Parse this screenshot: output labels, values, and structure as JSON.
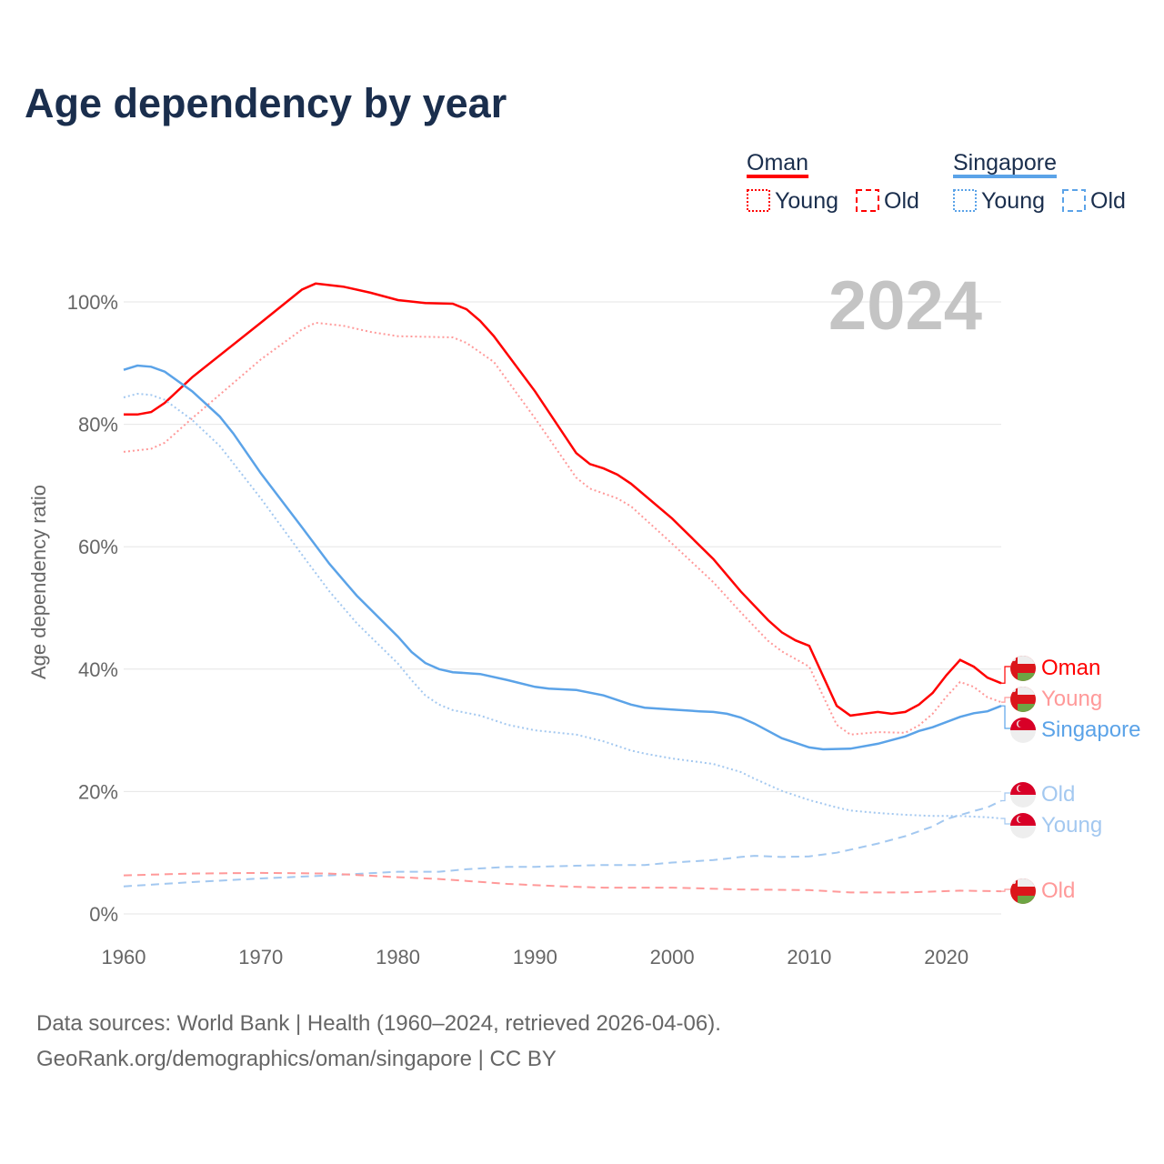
{
  "chart_data": {
    "type": "line",
    "title": "Age dependency by year",
    "xlabel": "",
    "ylabel": "Age dependency ratio",
    "xlim": [
      1960,
      2024
    ],
    "ylim": [
      0,
      100
    ],
    "x_ticks": [
      "1960",
      "1970",
      "1980",
      "1990",
      "2000",
      "2010",
      "2020"
    ],
    "y_ticks": [
      "0%",
      "20%",
      "40%",
      "60%",
      "80%",
      "100%"
    ],
    "grid": true,
    "year_watermark": "2024",
    "legend": {
      "placement": "top-right",
      "groups": [
        {
          "country": "Oman",
          "color": "#ff0000",
          "items": [
            "Young",
            "Old"
          ]
        },
        {
          "country": "Singapore",
          "color": "#5ba3e8",
          "items": [
            "Young",
            "Old"
          ]
        }
      ]
    },
    "series": [
      {
        "name": "Oman",
        "label": "Oman",
        "country": "Oman",
        "style": "solid",
        "color": "#ff0000",
        "points": [
          [
            1960,
            81.6
          ],
          [
            1961,
            81.6
          ],
          [
            1962,
            82
          ],
          [
            1963,
            83.5
          ],
          [
            1965,
            87.7
          ],
          [
            1970,
            96.6
          ],
          [
            1973,
            102
          ],
          [
            1974,
            103
          ],
          [
            1976,
            102.5
          ],
          [
            1978,
            101.5
          ],
          [
            1980,
            100.3
          ],
          [
            1982,
            99.8
          ],
          [
            1984,
            99.7
          ],
          [
            1985,
            98.8
          ],
          [
            1986,
            96.9
          ],
          [
            1987,
            94.4
          ],
          [
            1990,
            85.4
          ],
          [
            1993,
            75.3
          ],
          [
            1994,
            73.5
          ],
          [
            1995,
            72.8
          ],
          [
            1996,
            71.8
          ],
          [
            1997,
            70.3
          ],
          [
            2000,
            64.6
          ],
          [
            2003,
            58
          ],
          [
            2005,
            52.7
          ],
          [
            2007,
            48
          ],
          [
            2008,
            46
          ],
          [
            2009,
            44.7
          ],
          [
            2010,
            43.8
          ],
          [
            2012,
            34
          ],
          [
            2013,
            32.4
          ],
          [
            2015,
            33
          ],
          [
            2016,
            32.7
          ],
          [
            2017,
            33
          ],
          [
            2018,
            34.2
          ],
          [
            2019,
            36.1
          ],
          [
            2020,
            39
          ],
          [
            2021,
            41.5
          ],
          [
            2022,
            40.4
          ],
          [
            2023,
            38.6
          ],
          [
            2024,
            37.7
          ]
        ]
      },
      {
        "name": "Oman Young",
        "label": "Young",
        "country": "Oman",
        "style": "dotted",
        "color": "#ff9999",
        "points": [
          [
            1960,
            75.5
          ],
          [
            1962,
            76
          ],
          [
            1963,
            77
          ],
          [
            1965,
            81
          ],
          [
            1970,
            90.6
          ],
          [
            1973,
            95.5
          ],
          [
            1974,
            96.6
          ],
          [
            1976,
            96.1
          ],
          [
            1978,
            95.1
          ],
          [
            1980,
            94.4
          ],
          [
            1984,
            94.2
          ],
          [
            1985,
            93.3
          ],
          [
            1987,
            90.2
          ],
          [
            1990,
            81
          ],
          [
            1993,
            71.3
          ],
          [
            1994,
            69.5
          ],
          [
            1996,
            67.9
          ],
          [
            1997,
            66.6
          ],
          [
            2000,
            60.5
          ],
          [
            2003,
            54.2
          ],
          [
            2005,
            49.3
          ],
          [
            2007,
            44.6
          ],
          [
            2008,
            42.9
          ],
          [
            2010,
            40.4
          ],
          [
            2012,
            30.9
          ],
          [
            2013,
            29.3
          ],
          [
            2015,
            29.7
          ],
          [
            2017,
            29.6
          ],
          [
            2018,
            30.8
          ],
          [
            2019,
            32.7
          ],
          [
            2020,
            35.5
          ],
          [
            2021,
            37.9
          ],
          [
            2022,
            37.1
          ],
          [
            2023,
            35.4
          ],
          [
            2024,
            34.6
          ]
        ]
      },
      {
        "name": "Singapore",
        "label": "Singapore",
        "country": "Singapore",
        "style": "solid",
        "color": "#5ba3e8",
        "points": [
          [
            1960,
            88.9
          ],
          [
            1961,
            89.6
          ],
          [
            1962,
            89.4
          ],
          [
            1963,
            88.6
          ],
          [
            1965,
            85.4
          ],
          [
            1967,
            81.3
          ],
          [
            1968,
            78.5
          ],
          [
            1970,
            72
          ],
          [
            1973,
            63.2
          ],
          [
            1975,
            57.2
          ],
          [
            1977,
            52
          ],
          [
            1980,
            45.3
          ],
          [
            1981,
            42.8
          ],
          [
            1982,
            41
          ],
          [
            1983,
            40
          ],
          [
            1984,
            39.5
          ],
          [
            1986,
            39.2
          ],
          [
            1988,
            38.2
          ],
          [
            1990,
            37.1
          ],
          [
            1991,
            36.8
          ],
          [
            1993,
            36.6
          ],
          [
            1995,
            35.7
          ],
          [
            1997,
            34.2
          ],
          [
            1998,
            33.7
          ],
          [
            2000,
            33.4
          ],
          [
            2002,
            33.1
          ],
          [
            2003,
            33
          ],
          [
            2004,
            32.7
          ],
          [
            2005,
            32.1
          ],
          [
            2006,
            31.1
          ],
          [
            2008,
            28.7
          ],
          [
            2010,
            27.2
          ],
          [
            2011,
            26.9
          ],
          [
            2013,
            27
          ],
          [
            2015,
            27.8
          ],
          [
            2017,
            29
          ],
          [
            2018,
            29.9
          ],
          [
            2019,
            30.5
          ],
          [
            2021,
            32.2
          ],
          [
            2022,
            32.8
          ],
          [
            2023,
            33.1
          ],
          [
            2024,
            34
          ]
        ]
      },
      {
        "name": "Singapore Old",
        "label": "Old",
        "country": "Singapore",
        "style": "dashed",
        "color": "#a3c8f0",
        "points": [
          [
            1960,
            4.5
          ],
          [
            1965,
            5.2
          ],
          [
            1970,
            5.8
          ],
          [
            1975,
            6.3
          ],
          [
            1980,
            6.9
          ],
          [
            1983,
            6.9
          ],
          [
            1985,
            7.3
          ],
          [
            1988,
            7.7
          ],
          [
            1990,
            7.7
          ],
          [
            1995,
            8
          ],
          [
            1998,
            8
          ],
          [
            2000,
            8.4
          ],
          [
            2003,
            8.8
          ],
          [
            2005,
            9.3
          ],
          [
            2006,
            9.5
          ],
          [
            2008,
            9.3
          ],
          [
            2010,
            9.4
          ],
          [
            2012,
            10
          ],
          [
            2015,
            11.5
          ],
          [
            2017,
            12.7
          ],
          [
            2019,
            14.3
          ],
          [
            2020,
            15.5
          ],
          [
            2022,
            16.8
          ],
          [
            2023,
            17.4
          ],
          [
            2024,
            18.5
          ]
        ]
      },
      {
        "name": "Singapore Young",
        "label": "Young",
        "country": "Singapore",
        "style": "dotted",
        "color": "#a3c8f0",
        "points": [
          [
            1960,
            84.4
          ],
          [
            1961,
            85
          ],
          [
            1962,
            84.8
          ],
          [
            1963,
            84
          ],
          [
            1965,
            80.7
          ],
          [
            1967,
            76.5
          ],
          [
            1970,
            67.9
          ],
          [
            1973,
            58.7
          ],
          [
            1975,
            52.7
          ],
          [
            1977,
            47.5
          ],
          [
            1980,
            40.9
          ],
          [
            1981,
            38.2
          ],
          [
            1982,
            35.7
          ],
          [
            1983,
            34.2
          ],
          [
            1984,
            33.3
          ],
          [
            1986,
            32.4
          ],
          [
            1988,
            30.9
          ],
          [
            1990,
            30
          ],
          [
            1993,
            29.3
          ],
          [
            1995,
            28.2
          ],
          [
            1997,
            26.7
          ],
          [
            1998,
            26.2
          ],
          [
            2000,
            25.4
          ],
          [
            2002,
            24.8
          ],
          [
            2003,
            24.5
          ],
          [
            2005,
            23.2
          ],
          [
            2006,
            22.1
          ],
          [
            2008,
            20.1
          ],
          [
            2010,
            18.6
          ],
          [
            2012,
            17.4
          ],
          [
            2013,
            16.9
          ],
          [
            2015,
            16.5
          ],
          [
            2017,
            16.2
          ],
          [
            2019,
            16
          ],
          [
            2021,
            16
          ],
          [
            2023,
            15.8
          ],
          [
            2024,
            15.6
          ]
        ]
      },
      {
        "name": "Oman Old",
        "label": "Old",
        "country": "Oman",
        "style": "dashed",
        "color": "#ff9999",
        "points": [
          [
            1960,
            6.3
          ],
          [
            1965,
            6.6
          ],
          [
            1970,
            6.7
          ],
          [
            1975,
            6.6
          ],
          [
            1980,
            6
          ],
          [
            1983,
            5.7
          ],
          [
            1985,
            5.4
          ],
          [
            1988,
            4.9
          ],
          [
            1992,
            4.5
          ],
          [
            1995,
            4.3
          ],
          [
            2000,
            4.3
          ],
          [
            2005,
            4
          ],
          [
            2010,
            3.9
          ],
          [
            2013,
            3.5
          ],
          [
            2017,
            3.5
          ],
          [
            2021,
            3.8
          ],
          [
            2024,
            3.7
          ]
        ]
      }
    ]
  },
  "footer": {
    "line1": "Data sources: World Bank | Health (1960–2024, retrieved 2026-04-06).",
    "line2": "GeoRank.org/demographics/oman/singapore | CC BY"
  }
}
